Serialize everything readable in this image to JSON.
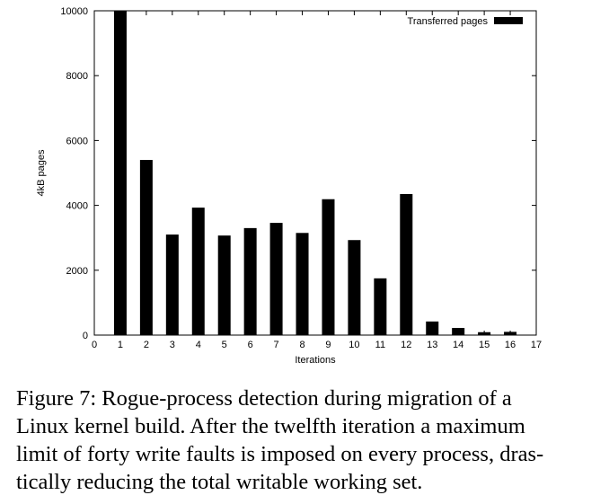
{
  "chart_data": {
    "type": "bar",
    "xlabel": "Iterations",
    "ylabel": "4kB pages",
    "xlim": [
      0,
      17
    ],
    "ylim": [
      0,
      10000
    ],
    "x_ticks": [
      "0",
      "1",
      "2",
      "3",
      "4",
      "5",
      "6",
      "7",
      "8",
      "9",
      "10",
      "11",
      "12",
      "13",
      "14",
      "15",
      "16",
      "17"
    ],
    "y_ticks": [
      "0",
      "2000",
      "4000",
      "6000",
      "8000",
      "10000"
    ],
    "legend": {
      "label": "Transferred pages",
      "position": "top-right"
    },
    "categories": [
      1,
      2,
      3,
      4,
      5,
      6,
      7,
      8,
      9,
      10,
      11,
      12,
      13,
      14,
      15,
      16
    ],
    "series": [
      {
        "name": "Transferred pages",
        "values": [
          10000,
          5400,
          3100,
          3930,
          3070,
          3300,
          3460,
          3150,
          4190,
          2930,
          1750,
          4350,
          420,
          220,
          90,
          100
        ]
      }
    ],
    "bar_color": "#000000",
    "grid": false
  },
  "caption": {
    "lines": [
      "Figure 7:  Rogue-process detection during migration of a",
      "Linux kernel build.  After the twelfth iteration a maximum",
      "limit of forty write faults is imposed on every process, dras-",
      "tically reducing the total writable working set."
    ]
  }
}
